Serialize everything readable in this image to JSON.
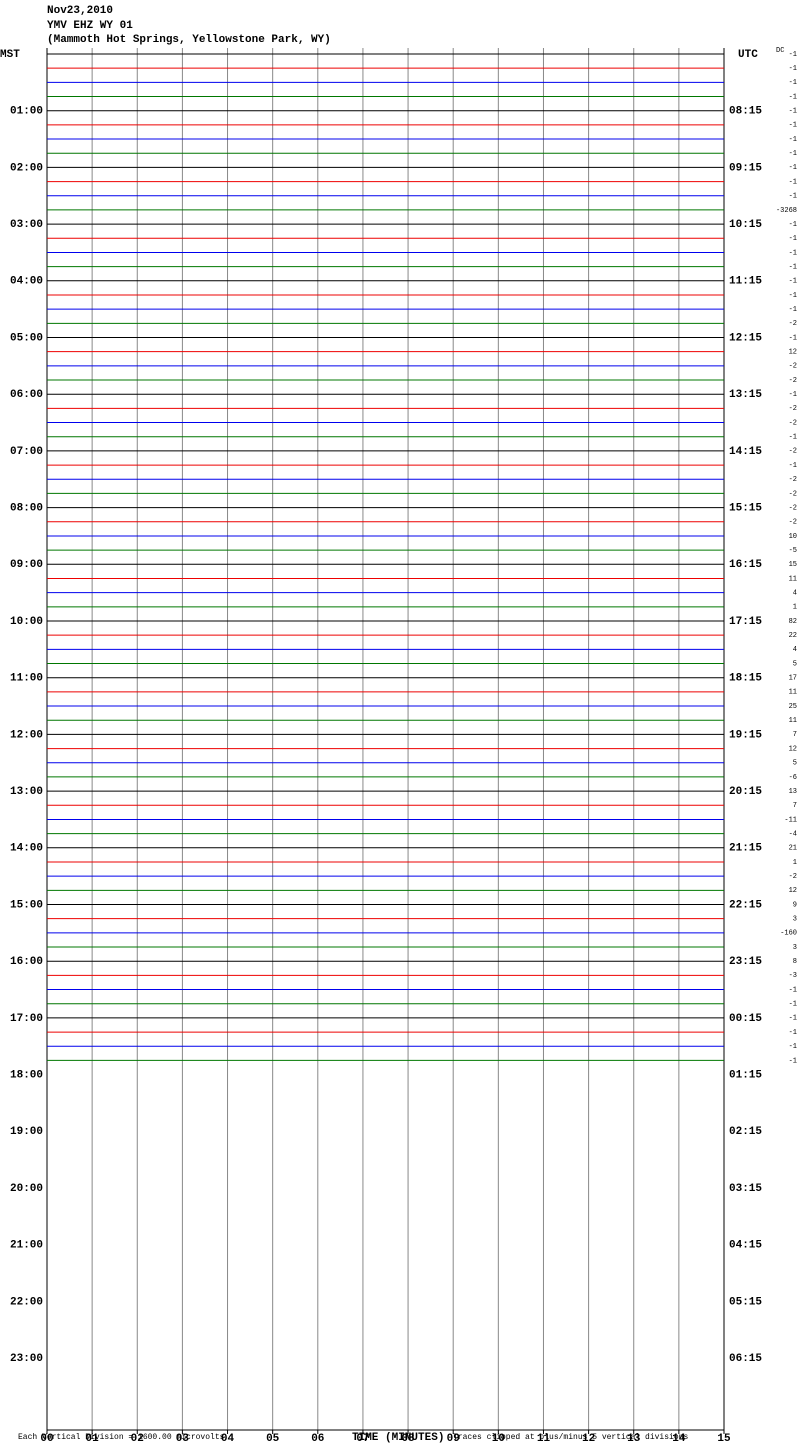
{
  "header": {
    "date": "Nov23,2010",
    "station": "YMV EHZ WY 01",
    "location": "(Mammoth Hot Springs, Yellowstone Park, WY)"
  },
  "left_axis": {
    "title": "MST",
    "labels": [
      "01:00",
      "02:00",
      "03:00",
      "04:00",
      "05:00",
      "06:00",
      "07:00",
      "08:00",
      "09:00",
      "10:00",
      "11:00",
      "12:00",
      "13:00",
      "14:00",
      "15:00",
      "16:00",
      "17:00",
      "18:00",
      "19:00",
      "20:00",
      "21:00",
      "22:00",
      "23:00"
    ]
  },
  "right_axis": {
    "title": "UTC",
    "labels": [
      "08:15",
      "09:15",
      "10:15",
      "11:15",
      "12:15",
      "13:15",
      "14:15",
      "15:15",
      "16:15",
      "17:15",
      "18:15",
      "19:15",
      "20:15",
      "21:15",
      "22:15",
      "23:15",
      "00:15",
      "01:15",
      "02:15",
      "03:15",
      "04:15",
      "05:15",
      "06:15"
    ]
  },
  "dc": {
    "title": "DC",
    "values": [
      -1,
      -1,
      -1,
      -1,
      -1,
      -1,
      -1,
      -1,
      -1,
      -1,
      -1,
      -3268,
      -1,
      -1,
      -1,
      -1,
      -1,
      -1,
      -1,
      -2,
      -1,
      12,
      -2,
      -2,
      -1,
      -2,
      -2,
      -1,
      -2,
      -1,
      -2,
      -2,
      -2,
      -2,
      10,
      -5,
      15,
      11,
      4,
      1,
      82,
      22,
      4,
      5,
      17,
      11,
      25,
      11,
      7,
      12,
      5,
      -6,
      13,
      7,
      -11,
      -4,
      21,
      1,
      -2,
      12,
      9,
      3,
      -160,
      3,
      8,
      -3,
      -1,
      -1,
      -1,
      -1,
      -1,
      -1
    ]
  },
  "x_axis": {
    "title": "TIME (MINUTES)",
    "ticks": [
      "00",
      "01",
      "02",
      "03",
      "04",
      "05",
      "06",
      "07",
      "08",
      "09",
      "10",
      "11",
      "12",
      "13",
      "14",
      "15"
    ]
  },
  "footer": {
    "scale": "Each Vertical Division = 1600.00 microvolts",
    "clip": "Traces clipped at plus/minus 5 vertical divisions"
  }
}
